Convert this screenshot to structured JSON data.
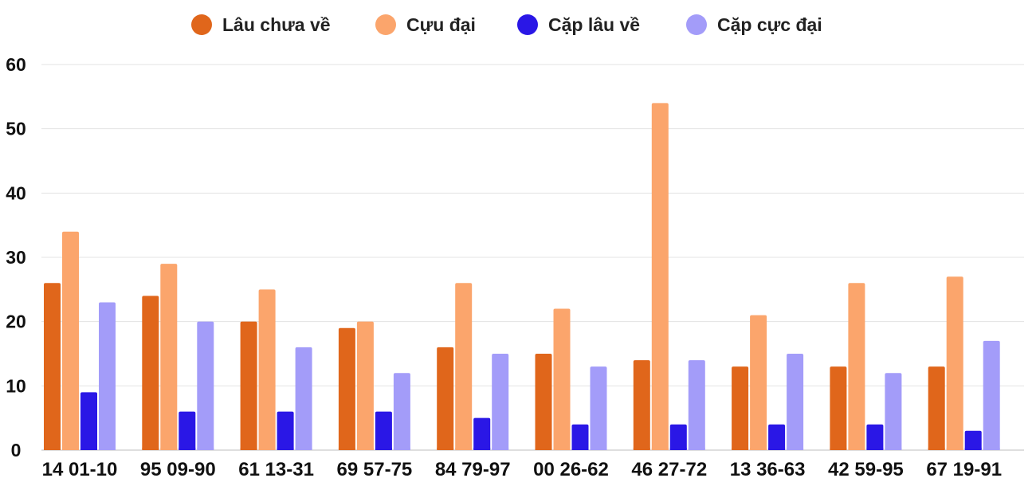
{
  "chart_data": {
    "type": "bar",
    "title": "",
    "xlabel": "",
    "ylabel": "",
    "ylim": [
      0,
      60
    ],
    "yticks": [
      0,
      10,
      20,
      30,
      40,
      50,
      60
    ],
    "grid": true,
    "legend_position": "top",
    "categories": [
      "14 01-10",
      "95 09-90",
      "61 13-31",
      "69 57-75",
      "84 79-97",
      "00 26-62",
      "46 27-72",
      "13 36-63",
      "42 59-95",
      "67 19-91"
    ],
    "series": [
      {
        "name": "Lâu chưa về",
        "color": "#e0661b",
        "values": [
          26,
          24,
          20,
          19,
          16,
          15,
          14,
          13,
          13,
          13
        ]
      },
      {
        "name": "Cựu đại",
        "color": "#fba56c",
        "values": [
          34,
          29,
          25,
          20,
          26,
          22,
          54,
          21,
          26,
          27
        ]
      },
      {
        "name": "Cặp lâu về",
        "color": "#2a17e6",
        "values": [
          9,
          6,
          6,
          6,
          5,
          4,
          4,
          4,
          4,
          3
        ]
      },
      {
        "name": "Cặp cực đại",
        "color": "#a39cf9",
        "values": [
          23,
          20,
          16,
          12,
          15,
          13,
          14,
          15,
          12,
          17
        ]
      }
    ]
  }
}
